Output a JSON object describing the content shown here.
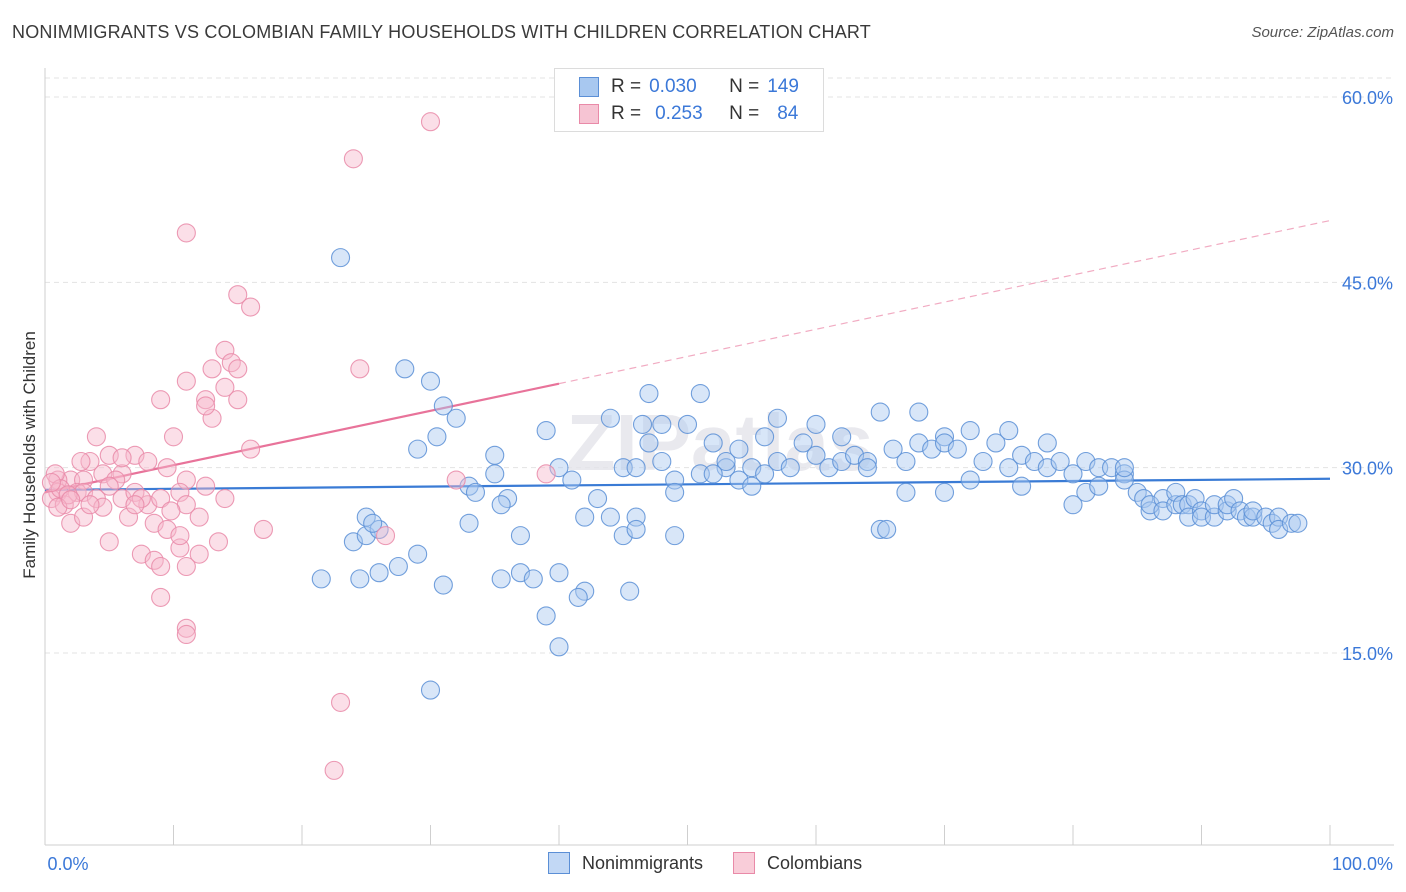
{
  "header": {
    "title": "NONIMMIGRANTS VS COLOMBIAN FAMILY HOUSEHOLDS WITH CHILDREN CORRELATION CHART",
    "source": "Source: ZipAtlas.com"
  },
  "legend_top": [
    {
      "r_label": "R =",
      "r_value": "0.030",
      "n_label": "N =",
      "n_value": "149"
    },
    {
      "r_label": "R =",
      "r_value": "0.253",
      "n_label": "N =",
      "n_value": "84"
    }
  ],
  "legend_bottom": [
    {
      "label": "Nonimmigrants"
    },
    {
      "label": "Colombians"
    }
  ],
  "colors": {
    "blue_fill": "#a8c8f0",
    "blue_stroke": "#5b8fd6",
    "blue_line": "#3a7bd5",
    "pink_fill": "#f6b8cb",
    "pink_stroke": "#e98aa8",
    "pink_line": "#e8739a",
    "grid": "#e3e3e3",
    "axis_text": "#3b78d8"
  },
  "watermark": "ZIPatlas",
  "chart_data": {
    "type": "scatter",
    "title": "NONIMMIGRANTS VS COLOMBIAN FAMILY HOUSEHOLDS WITH CHILDREN CORRELATION CHART",
    "xlabel": "",
    "ylabel": "Family Households with Children",
    "xlim": [
      0,
      100
    ],
    "ylim": [
      0,
      60
    ],
    "x_tick_labels": [
      "0.0%",
      "100.0%"
    ],
    "y_ticks": [
      15,
      30,
      45,
      60
    ],
    "y_tick_labels": [
      "15.0%",
      "30.0%",
      "45.0%",
      "60.0%"
    ],
    "grid": true,
    "series": [
      {
        "name": "Nonimmigrants",
        "R": 0.03,
        "N": 149,
        "trend": {
          "x0": 0,
          "y0": 28.2,
          "x1": 100,
          "y1": 29.1
        },
        "points": [
          [
            23,
            47
          ],
          [
            28,
            38
          ],
          [
            30,
            37
          ],
          [
            31,
            35
          ],
          [
            32,
            34
          ],
          [
            29,
            31.5
          ],
          [
            21.5,
            21
          ],
          [
            24,
            24
          ],
          [
            24.5,
            21
          ],
          [
            25,
            24.5
          ],
          [
            25,
            26
          ],
          [
            26,
            25
          ],
          [
            26,
            21.5
          ],
          [
            27.5,
            22
          ],
          [
            29,
            23
          ],
          [
            31,
            20.5
          ],
          [
            33,
            28.5
          ],
          [
            33,
            25.5
          ],
          [
            35,
            29.5
          ],
          [
            36,
            27.5
          ],
          [
            35,
            31
          ],
          [
            37,
            24.5
          ],
          [
            37,
            21.5
          ],
          [
            38,
            21
          ],
          [
            39,
            18
          ],
          [
            40,
            15.5
          ],
          [
            40,
            21.5
          ],
          [
            39,
            33
          ],
          [
            40,
            30
          ],
          [
            41,
            29
          ],
          [
            42,
            20
          ],
          [
            42,
            26
          ],
          [
            43,
            27.5
          ],
          [
            44,
            34
          ],
          [
            44,
            26
          ],
          [
            45,
            30
          ],
          [
            45,
            24.5
          ],
          [
            46,
            30
          ],
          [
            46,
            26
          ],
          [
            47,
            32
          ],
          [
            47,
            36
          ],
          [
            48,
            30.5
          ],
          [
            48,
            33.5
          ],
          [
            49,
            29
          ],
          [
            49,
            24.5
          ],
          [
            49,
            28
          ],
          [
            50,
            33.5
          ],
          [
            51,
            29.5
          ],
          [
            51,
            36
          ],
          [
            52,
            32
          ],
          [
            53,
            30
          ],
          [
            53,
            30.5
          ],
          [
            54,
            29
          ],
          [
            54,
            31.5
          ],
          [
            55,
            30
          ],
          [
            56,
            29.5
          ],
          [
            56,
            32.5
          ],
          [
            57,
            30.5
          ],
          [
            57,
            34
          ],
          [
            58,
            30
          ],
          [
            59,
            32
          ],
          [
            60,
            31
          ],
          [
            60,
            33.5
          ],
          [
            61,
            30
          ],
          [
            62,
            32.5
          ],
          [
            62,
            30.5
          ],
          [
            63,
            31
          ],
          [
            64,
            30.5
          ],
          [
            64,
            30
          ],
          [
            65,
            34.5
          ],
          [
            65,
            25
          ],
          [
            65.5,
            25
          ],
          [
            66,
            31.5
          ],
          [
            67,
            30.5
          ],
          [
            67,
            28
          ],
          [
            68,
            32
          ],
          [
            68,
            34.5
          ],
          [
            69,
            31.5
          ],
          [
            70,
            32.5
          ],
          [
            70,
            32
          ],
          [
            71,
            31.5
          ],
          [
            72,
            29
          ],
          [
            72,
            33
          ],
          [
            73,
            30.5
          ],
          [
            74,
            32
          ],
          [
            75,
            30
          ],
          [
            75,
            33
          ],
          [
            76,
            31
          ],
          [
            76,
            28.5
          ],
          [
            77,
            30.5
          ],
          [
            78,
            30
          ],
          [
            78,
            32
          ],
          [
            79,
            30.5
          ],
          [
            80,
            29.5
          ],
          [
            80,
            27
          ],
          [
            81,
            28
          ],
          [
            81,
            30.5
          ],
          [
            82,
            28.5
          ],
          [
            82,
            30
          ],
          [
            83,
            30
          ],
          [
            84,
            29.5
          ],
          [
            84,
            29
          ],
          [
            84,
            30
          ],
          [
            85,
            28
          ],
          [
            85.5,
            27.5
          ],
          [
            86,
            26.5
          ],
          [
            86,
            27
          ],
          [
            87,
            27.5
          ],
          [
            87,
            26.5
          ],
          [
            88,
            27
          ],
          [
            88,
            28
          ],
          [
            88.5,
            27
          ],
          [
            89,
            27
          ],
          [
            89,
            26
          ],
          [
            89.5,
            27.5
          ],
          [
            90,
            26.5
          ],
          [
            90,
            26
          ],
          [
            91,
            26
          ],
          [
            91,
            27
          ],
          [
            92,
            26.5
          ],
          [
            92,
            27
          ],
          [
            92.5,
            27.5
          ],
          [
            93,
            26.5
          ],
          [
            93.5,
            26
          ],
          [
            94,
            26
          ],
          [
            94,
            26.5
          ],
          [
            95,
            26
          ],
          [
            95.5,
            25.5
          ],
          [
            96,
            26
          ],
          [
            96,
            25
          ],
          [
            97,
            25.5
          ],
          [
            97.5,
            25.5
          ],
          [
            46,
            25
          ],
          [
            45.5,
            20
          ],
          [
            41.5,
            19.5
          ],
          [
            35.5,
            21
          ],
          [
            30.5,
            32.5
          ],
          [
            70,
            28
          ],
          [
            25.5,
            25.5
          ],
          [
            35.5,
            27
          ],
          [
            30,
            12
          ],
          [
            33.5,
            28
          ],
          [
            46.5,
            33.5
          ],
          [
            52,
            29.5
          ],
          [
            55,
            28.5
          ]
        ]
      },
      {
        "name": "Colombians",
        "R": 0.253,
        "N": 84,
        "trend": {
          "x0": 0,
          "y0": 28,
          "x1": 40,
          "y1": 36.8,
          "dashed_to": {
            "x": 100,
            "y": 50
          }
        },
        "points": [
          [
            30,
            58
          ],
          [
            24,
            55
          ],
          [
            11,
            49
          ],
          [
            15,
            44
          ],
          [
            16,
            43
          ],
          [
            14,
            39.5
          ],
          [
            13,
            38
          ],
          [
            14.5,
            38.5
          ],
          [
            15,
            38
          ],
          [
            11,
            37
          ],
          [
            9,
            35.5
          ],
          [
            12.5,
            35.5
          ],
          [
            14,
            36.5
          ],
          [
            15,
            35.5
          ],
          [
            13,
            34
          ],
          [
            12.5,
            35
          ],
          [
            10,
            32.5
          ],
          [
            16,
            31.5
          ],
          [
            4,
            32.5
          ],
          [
            3.5,
            30.5
          ],
          [
            5,
            31
          ],
          [
            7,
            31
          ],
          [
            8,
            30.5
          ],
          [
            9.5,
            30
          ],
          [
            11,
            29
          ],
          [
            6,
            29.5
          ],
          [
            4.5,
            29.5
          ],
          [
            2,
            29
          ],
          [
            3,
            29
          ],
          [
            1,
            29
          ],
          [
            2.5,
            28
          ],
          [
            1,
            28
          ],
          [
            0.5,
            27.5
          ],
          [
            1.5,
            27
          ],
          [
            3,
            28
          ],
          [
            4,
            27.5
          ],
          [
            6,
            27.5
          ],
          [
            7,
            28
          ],
          [
            8,
            27
          ],
          [
            9,
            27.5
          ],
          [
            10.5,
            28
          ],
          [
            11,
            27
          ],
          [
            12,
            26
          ],
          [
            6.5,
            26
          ],
          [
            8.5,
            25.5
          ],
          [
            9.5,
            25
          ],
          [
            10.5,
            23.5
          ],
          [
            7.5,
            23
          ],
          [
            12,
            23
          ],
          [
            5,
            24
          ],
          [
            8.5,
            22.5
          ],
          [
            9,
            22
          ],
          [
            11,
            22
          ],
          [
            9,
            19.5
          ],
          [
            11,
            17
          ],
          [
            11,
            16.5
          ],
          [
            23,
            11
          ],
          [
            22.5,
            5.5
          ],
          [
            17,
            25
          ],
          [
            2,
            25.5
          ],
          [
            3,
            26
          ],
          [
            0.8,
            29.5
          ],
          [
            1.2,
            28.3
          ],
          [
            1.8,
            27.8
          ],
          [
            4.5,
            26.8
          ],
          [
            5.5,
            29
          ],
          [
            7.5,
            27.5
          ],
          [
            9.8,
            26.5
          ],
          [
            12.5,
            28.5
          ],
          [
            14,
            27.5
          ],
          [
            13.5,
            24
          ],
          [
            6,
            30.8
          ],
          [
            5,
            28.5
          ],
          [
            3.5,
            27
          ],
          [
            2.8,
            30.5
          ],
          [
            0.5,
            28.8
          ],
          [
            1,
            26.8
          ],
          [
            2,
            27.4
          ],
          [
            24.5,
            38
          ],
          [
            32,
            29
          ],
          [
            39,
            29.5
          ],
          [
            10.5,
            24.5
          ],
          [
            26.5,
            24.5
          ],
          [
            7,
            27
          ]
        ]
      }
    ]
  }
}
